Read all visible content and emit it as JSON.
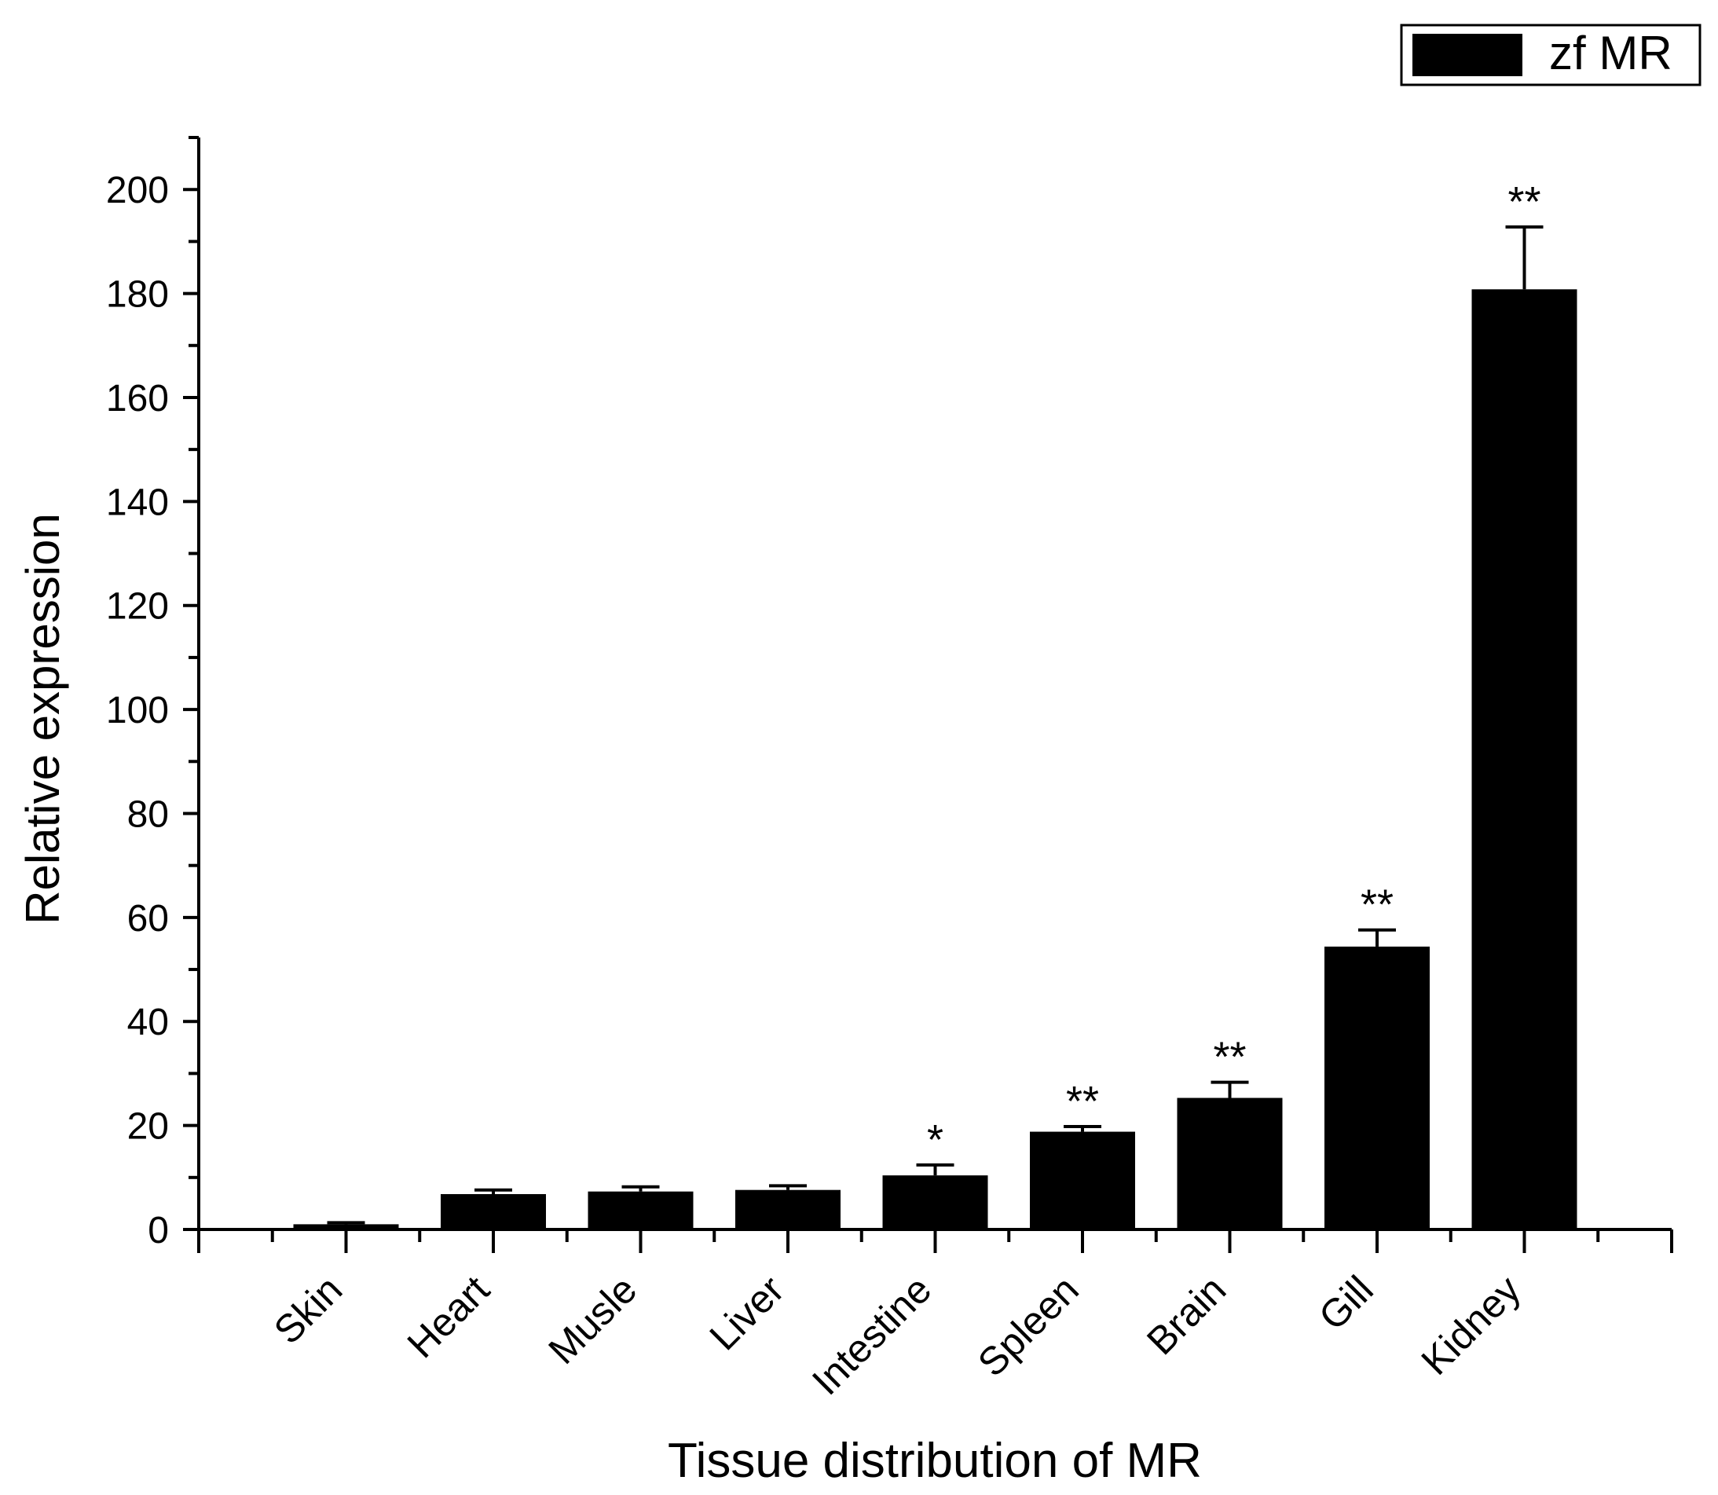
{
  "chart_data": {
    "type": "bar",
    "title": "",
    "xlabel": "Tissue distribution of MR",
    "ylabel": "Relative expression",
    "ylim": [
      0,
      210
    ],
    "y_ticks": [
      0,
      20,
      40,
      60,
      80,
      100,
      120,
      140,
      160,
      180,
      200
    ],
    "grid": false,
    "legend_position": "top-right",
    "categories": [
      "Skin",
      "Heart",
      "Musle",
      "Liver",
      "Intestine",
      "Spleen",
      "Brain",
      "Gill",
      "Kidney"
    ],
    "series": [
      {
        "name": "zf MR",
        "color": "#000000",
        "values": [
          1.0,
          6.8,
          7.3,
          7.6,
          10.4,
          18.8,
          25.3,
          54.4,
          180.8
        ],
        "error": [
          0.3,
          0.8,
          0.9,
          0.8,
          2.0,
          1.0,
          3.0,
          3.2,
          12.0
        ],
        "significance": [
          "",
          "",
          "",
          "",
          "*",
          "**",
          "**",
          "**",
          "**"
        ]
      }
    ]
  }
}
